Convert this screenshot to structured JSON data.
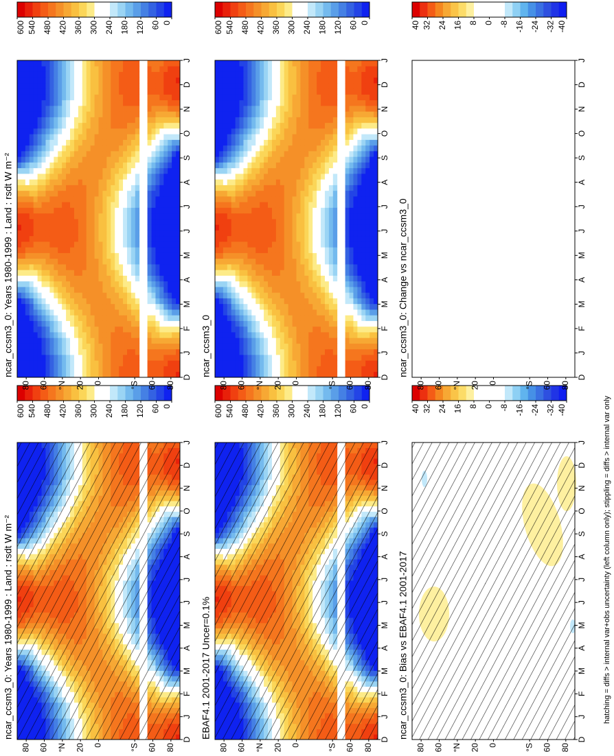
{
  "chart_data": [
    {
      "type": "contour",
      "title": "ncar_ccsm3_0: Years 1980-1999 : Land : rsdt W m⁻²",
      "hatching": true,
      "categories": [
        "D",
        "J",
        "F",
        "M",
        "A",
        "M",
        "J",
        "J",
        "A",
        "S",
        "O",
        "N",
        "D",
        "J"
      ],
      "ylim": [
        -90,
        90
      ],
      "yticks": [
        80,
        60,
        {
          "value": 40,
          "label": "°N"
        },
        20,
        0,
        {
          "value": -40,
          "label": "°S"
        },
        {
          "value": -60,
          "label": "60"
        },
        {
          "value": -80,
          "label": "80"
        }
      ],
      "colorbar": {
        "levels": [
          600,
          540,
          480,
          420,
          360,
          300,
          240,
          180,
          120,
          60,
          0
        ],
        "colors": [
          "#dc0000",
          "#e8200a",
          "#f04010",
          "#f45c16",
          "#f5761e",
          "#f59028",
          "#f7a834",
          "#f9c040",
          "#fbd658",
          "#fdeb88",
          "#ffffff",
          "#ffffff",
          "#c2e8fa",
          "#9ad4f4",
          "#74baee",
          "#5a9ee8",
          "#4580e4",
          "#3462e2",
          "#2344e6",
          "#0f22f0"
        ]
      }
    },
    {
      "type": "contour",
      "title": "ncar_ccsm3_0: Years 1980-1999 : Land : rsdt W m⁻²",
      "hatching": false,
      "categories": [
        "D",
        "J",
        "F",
        "M",
        "A",
        "M",
        "J",
        "J",
        "A",
        "S",
        "O",
        "N",
        "D",
        "J"
      ],
      "ylim": [
        -90,
        90
      ],
      "yticks": [
        80,
        60,
        {
          "value": 40,
          "label": "°N"
        },
        20,
        0,
        {
          "value": -40,
          "label": "°S"
        },
        {
          "value": -60,
          "label": "60"
        },
        {
          "value": -80,
          "label": "80"
        }
      ],
      "colorbar": {
        "levels": [
          600,
          540,
          480,
          420,
          360,
          300,
          240,
          180,
          120,
          60,
          0
        ],
        "colors": [
          "#dc0000",
          "#e8200a",
          "#f04010",
          "#f45c16",
          "#f5761e",
          "#f59028",
          "#f7a834",
          "#f9c040",
          "#fbd658",
          "#fdeb88",
          "#ffffff",
          "#ffffff",
          "#c2e8fa",
          "#9ad4f4",
          "#74baee",
          "#5a9ee8",
          "#4580e4",
          "#3462e2",
          "#2344e6",
          "#0f22f0"
        ]
      }
    },
    {
      "type": "contour",
      "title": "EBAF4.1 2001-2017 Uncer=0.1%",
      "hatching": true,
      "categories": [
        "D",
        "J",
        "F",
        "M",
        "A",
        "M",
        "J",
        "J",
        "A",
        "S",
        "O",
        "N",
        "D",
        "J"
      ],
      "ylim": [
        -90,
        90
      ],
      "yticks": [
        80,
        60,
        {
          "value": 40,
          "label": "°N"
        },
        20,
        0,
        {
          "value": -40,
          "label": "°S"
        },
        {
          "value": -60,
          "label": "60"
        },
        {
          "value": -80,
          "label": "80"
        }
      ],
      "colorbar": {
        "levels": [
          600,
          540,
          480,
          420,
          360,
          300,
          240,
          180,
          120,
          60,
          0
        ],
        "colors": [
          "#dc0000",
          "#e8200a",
          "#f04010",
          "#f45c16",
          "#f5761e",
          "#f59028",
          "#f7a834",
          "#f9c040",
          "#fbd658",
          "#fdeb88",
          "#ffffff",
          "#ffffff",
          "#c2e8fa",
          "#9ad4f4",
          "#74baee",
          "#5a9ee8",
          "#4580e4",
          "#3462e2",
          "#2344e6",
          "#0f22f0"
        ]
      }
    },
    {
      "type": "contour",
      "title": "ncar_ccsm3_0",
      "hatching": false,
      "categories": [
        "D",
        "J",
        "F",
        "M",
        "A",
        "M",
        "J",
        "J",
        "A",
        "S",
        "O",
        "N",
        "D",
        "J"
      ],
      "ylim": [
        -90,
        90
      ],
      "yticks": [
        80,
        60,
        {
          "value": 40,
          "label": "°N"
        },
        20,
        0,
        {
          "value": -40,
          "label": "°S"
        },
        {
          "value": -60,
          "label": "60"
        },
        {
          "value": -80,
          "label": "80"
        }
      ],
      "colorbar": {
        "levels": [
          600,
          540,
          480,
          420,
          360,
          300,
          240,
          180,
          120,
          60,
          0
        ],
        "colors": [
          "#dc0000",
          "#e8200a",
          "#f04010",
          "#f45c16",
          "#f5761e",
          "#f59028",
          "#f7a834",
          "#f9c040",
          "#fbd658",
          "#fdeb88",
          "#ffffff",
          "#ffffff",
          "#c2e8fa",
          "#9ad4f4",
          "#74baee",
          "#5a9ee8",
          "#4580e4",
          "#3462e2",
          "#2344e6",
          "#0f22f0"
        ]
      }
    },
    {
      "type": "contour",
      "title": "ncar_ccsm3_0: Bias vs EBAF4.1 2001-2017",
      "hatching": true,
      "categories": [
        "D",
        "J",
        "F",
        "M",
        "A",
        "M",
        "J",
        "J",
        "A",
        "S",
        "O",
        "N",
        "D",
        "J"
      ],
      "ylim": [
        -90,
        90
      ],
      "yticks": [
        80,
        60,
        {
          "value": 40,
          "label": "°N"
        },
        20,
        0,
        {
          "value": -40,
          "label": "°S"
        },
        {
          "value": -60,
          "label": "60"
        },
        {
          "value": -80,
          "label": "80"
        }
      ],
      "colorbar": {
        "levels": [
          40,
          32,
          24,
          16,
          8,
          0,
          -8,
          -16,
          -24,
          -32,
          -40
        ],
        "colors": [
          "#dc0000",
          "#ec3010",
          "#f45c16",
          "#f5861f",
          "#f7a834",
          "#fac448",
          "#fcdc68",
          "#fef0a0",
          "#ffffff",
          "#ffffff",
          "#ffffff",
          "#ffffff",
          "#c2e8fa",
          "#8ed0f4",
          "#60b4ee",
          "#4690e6",
          "#3a70e2",
          "#2e50e0",
          "#2034e6",
          "#0f1ef0"
        ]
      }
    },
    {
      "type": "contour",
      "title": "ncar_ccsm3_0: Change vs ncar_ccsm3_0",
      "hatching": false,
      "categories": [
        "D",
        "J",
        "F",
        "M",
        "A",
        "M",
        "J",
        "J",
        "A",
        "S",
        "O",
        "N",
        "D",
        "J"
      ],
      "ylim": [
        -90,
        90
      ],
      "yticks": [
        80,
        60,
        {
          "value": 40,
          "label": "°N"
        },
        20,
        0,
        {
          "value": -40,
          "label": "°S"
        },
        {
          "value": -60,
          "label": "60"
        },
        {
          "value": -80,
          "label": "80"
        }
      ],
      "colorbar": {
        "levels": [
          40,
          32,
          24,
          16,
          8,
          0,
          -8,
          -16,
          -24,
          -32,
          -40
        ],
        "colors": [
          "#dc0000",
          "#ec3010",
          "#f45c16",
          "#f5861f",
          "#f7a834",
          "#fac448",
          "#fcdc68",
          "#fef0a0",
          "#ffffff",
          "#ffffff",
          "#ffffff",
          "#ffffff",
          "#c2e8fa",
          "#8ed0f4",
          "#60b4ee",
          "#4690e6",
          "#3a70e2",
          "#2e50e0",
          "#2034e6",
          "#0f1ef0"
        ]
      }
    }
  ],
  "footer": "hatching = diffs > internal var+obs uncertainty (left column only); stippling = diffs > internal var only"
}
